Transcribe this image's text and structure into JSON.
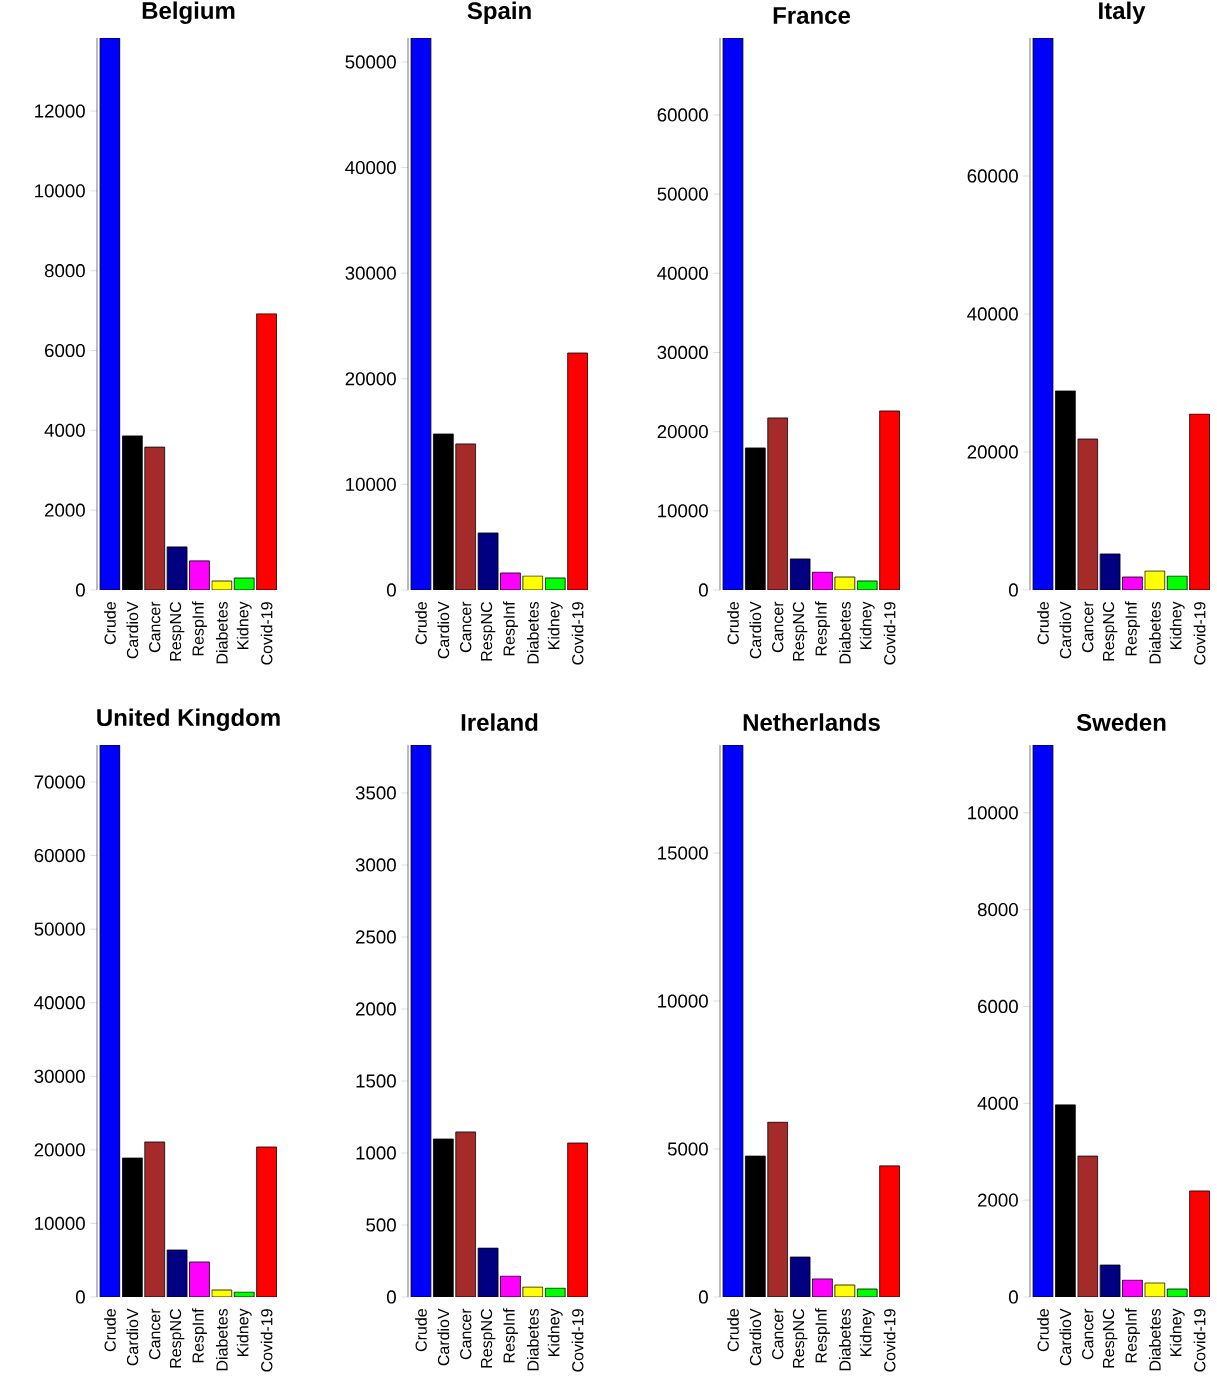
{
  "chart_data": [
    {
      "type": "bar",
      "title": "Belgium",
      "categories": [
        "Crude",
        "CardioV",
        "Cancer",
        "RespNC",
        "RespInf",
        "Diabetes",
        "Kidney",
        "Covid-19"
      ],
      "values": [
        13830,
        3860,
        3580,
        1080,
        730,
        225,
        300,
        6920
      ],
      "colors": [
        "#0000ff",
        "#000000",
        "#a52a2a",
        "#000080",
        "#ff00ff",
        "#ffff00",
        "#00ff00",
        "#ff0000"
      ],
      "ylim": [
        0,
        13830
      ],
      "yticks": [
        0,
        2000,
        4000,
        6000,
        8000,
        10000,
        12000
      ]
    },
    {
      "type": "bar",
      "title": "Spain",
      "categories": [
        "Crude",
        "CardioV",
        "Cancer",
        "RespNC",
        "RespInf",
        "Diabetes",
        "Kidney",
        "Covid-19"
      ],
      "values": [
        52270,
        14770,
        13830,
        5400,
        1610,
        1330,
        1140,
        22440
      ],
      "colors": [
        "#0000ff",
        "#000000",
        "#a52a2a",
        "#000080",
        "#ff00ff",
        "#ffff00",
        "#00ff00",
        "#ff0000"
      ],
      "ylim": [
        0,
        52270
      ],
      "yticks": [
        0,
        10000,
        20000,
        30000,
        40000,
        50000
      ]
    },
    {
      "type": "bar",
      "title": "France",
      "categories": [
        "Crude",
        "CardioV",
        "Cancer",
        "RespNC",
        "RespInf",
        "Diabetes",
        "Kidney",
        "Covid-19"
      ],
      "values": [
        69720,
        17940,
        21730,
        3920,
        2270,
        1640,
        1140,
        22610
      ],
      "colors": [
        "#0000ff",
        "#000000",
        "#a52a2a",
        "#000080",
        "#ff00ff",
        "#ffff00",
        "#00ff00",
        "#ff0000"
      ],
      "ylim": [
        0,
        69720
      ],
      "yticks": [
        0,
        10000,
        20000,
        30000,
        40000,
        50000,
        60000
      ]
    },
    {
      "type": "bar",
      "title": "Italy",
      "categories": [
        "Crude",
        "CardioV",
        "Cancer",
        "RespNC",
        "RespInf",
        "Diabetes",
        "Kidney",
        "Covid-19"
      ],
      "values": [
        80000,
        28840,
        21880,
        5220,
        1880,
        2750,
        2030,
        25510
      ],
      "colors": [
        "#0000ff",
        "#000000",
        "#a52a2a",
        "#000080",
        "#ff00ff",
        "#ffff00",
        "#00ff00",
        "#ff0000"
      ],
      "ylim": [
        0,
        80000
      ],
      "yticks": [
        0,
        20000,
        40000,
        60000
      ]
    },
    {
      "type": "bar",
      "title": "United Kingdom",
      "categories": [
        "Crude",
        "CardioV",
        "Cancer",
        "RespNC",
        "RespInf",
        "Diabetes",
        "Kidney",
        "Covid-19"
      ],
      "values": [
        75030,
        18890,
        21070,
        6390,
        4760,
        950,
        680,
        20390
      ],
      "colors": [
        "#0000ff",
        "#000000",
        "#a52a2a",
        "#000080",
        "#ff00ff",
        "#ffff00",
        "#00ff00",
        "#ff0000"
      ],
      "ylim": [
        0,
        75030
      ],
      "yticks": [
        0,
        10000,
        20000,
        30000,
        40000,
        50000,
        60000,
        70000
      ]
    },
    {
      "type": "bar",
      "title": "Ireland",
      "categories": [
        "Crude",
        "CardioV",
        "Cancer",
        "RespNC",
        "RespInf",
        "Diabetes",
        "Kidney",
        "Covid-19"
      ],
      "values": [
        3833,
        1097,
        1146,
        340,
        146,
        69,
        62,
        1069
      ],
      "colors": [
        "#0000ff",
        "#000000",
        "#a52a2a",
        "#000080",
        "#ff00ff",
        "#ffff00",
        "#00ff00",
        "#ff0000"
      ],
      "ylim": [
        0,
        3833
      ],
      "yticks": [
        0,
        500,
        1000,
        1500,
        2000,
        2500,
        3000,
        3500
      ]
    },
    {
      "type": "bar",
      "title": "Netherlands",
      "categories": [
        "Crude",
        "CardioV",
        "Cancer",
        "RespNC",
        "RespInf",
        "Diabetes",
        "Kidney",
        "Covid-19"
      ],
      "values": [
        18650,
        4760,
        5910,
        1350,
        610,
        405,
        270,
        4430
      ],
      "colors": [
        "#0000ff",
        "#000000",
        "#a52a2a",
        "#000080",
        "#ff00ff",
        "#ffff00",
        "#00ff00",
        "#ff0000"
      ],
      "ylim": [
        0,
        18650
      ],
      "yticks": [
        0,
        5000,
        10000,
        15000
      ]
    },
    {
      "type": "bar",
      "title": "Sweden",
      "categories": [
        "Crude",
        "CardioV",
        "Cancer",
        "RespNC",
        "RespInf",
        "Diabetes",
        "Kidney",
        "Covid-19"
      ],
      "values": [
        11400,
        3970,
        2910,
        660,
        350,
        290,
        165,
        2190
      ],
      "colors": [
        "#0000ff",
        "#000000",
        "#a52a2a",
        "#000080",
        "#ff00ff",
        "#ffff00",
        "#00ff00",
        "#ff0000"
      ],
      "ylim": [
        0,
        11400
      ],
      "yticks": [
        0,
        2000,
        4000,
        6000,
        8000,
        10000
      ]
    }
  ]
}
